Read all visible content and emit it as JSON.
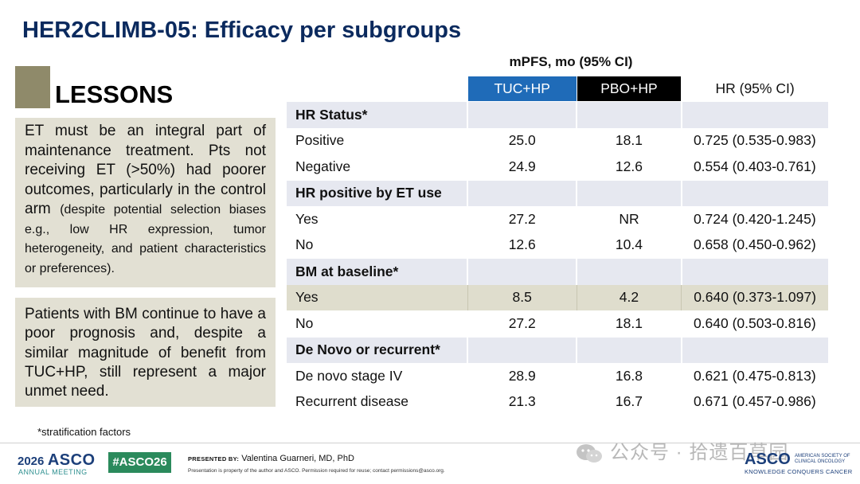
{
  "slide": {
    "title": "HER2CLIMB-05: Efficacy per subgroups",
    "lessons_label": "LESSONS",
    "panel1_main": "ET must be an integral part of maintenance treatment. Pts not receiving ET (>50%) had poorer outcomes, particularly in the control arm ",
    "panel1_small": "(despite potential selection biases e.g., low HR expression, tumor heterogeneity, and patient characteristics or preferences).",
    "panel2": "Patients with BM continue to have a poor prognosis and, despite a similar magnitude of benefit from TUC+HP, still represent a major unmet need.",
    "footnote": "*stratification factors"
  },
  "table": {
    "super_header": "mPFS, mo (95% CI)",
    "headers": [
      "TUC+HP",
      "PBO+HP",
      "HR (95% CI)"
    ],
    "groups": [
      {
        "label": "HR Status*",
        "rows": [
          {
            "label": "Positive",
            "tuc": "25.0",
            "pbo": "18.1",
            "hr": "0.725 (0.535-0.983)"
          },
          {
            "label": "Negative",
            "tuc": "24.9",
            "pbo": "12.6",
            "hr": "0.554 (0.403-0.761)"
          }
        ]
      },
      {
        "label": "HR positive by ET use",
        "rows": [
          {
            "label": "Yes",
            "tuc": "27.2",
            "pbo": "NR",
            "hr": "0.724 (0.420-1.245)"
          },
          {
            "label": "No",
            "tuc": "12.6",
            "pbo": "10.4",
            "hr": "0.658 (0.450-0.962)"
          }
        ]
      },
      {
        "label": "BM at baseline*",
        "rows": [
          {
            "label": "Yes",
            "tuc": "8.5",
            "pbo": "4.2",
            "hr": "0.640 (0.373-1.097)"
          },
          {
            "label": "No",
            "tuc": "27.2",
            "pbo": "18.1",
            "hr": "0.640 (0.503-0.816)"
          }
        ]
      },
      {
        "label": "De Novo or recurrent*",
        "rows": [
          {
            "label": "De novo stage IV",
            "tuc": "28.9",
            "pbo": "16.8",
            "hr": "0.621 (0.475-0.813)"
          },
          {
            "label": "Recurrent disease",
            "tuc": "21.3",
            "pbo": "16.7",
            "hr": "0.671 (0.457-0.986)"
          }
        ]
      }
    ]
  },
  "footer": {
    "asco_year": "2026",
    "asco_name": "ASCO",
    "asco_meeting": "ANNUAL MEETING",
    "hashtag": "#ASCO26",
    "presented_by_label": "PRESENTED BY:",
    "presenter": "Valentina Guarneri, MD, PhD",
    "disclaimer": "Presentation is property of the author and ASCO. Permission required for reuse; contact permissions@asco.org.",
    "watermark": "公众号 · 拾遗百草园",
    "asco_right": "ASCO",
    "asco_right_sub": "AMERICAN SOCIETY OF CLINICAL ONCOLOGY",
    "asco_right_tag": "KNOWLEDGE CONQUERS CANCER"
  },
  "colors": {
    "title": "#0b2a5e",
    "tuc_header": "#1f6bb8",
    "pbo_header": "#000000",
    "panel_bg": "#e2e0d3",
    "group_bg": "#e6e8f0",
    "highlight_bg": "#dfddcd",
    "hashtag_bg": "#2b8a5c"
  }
}
